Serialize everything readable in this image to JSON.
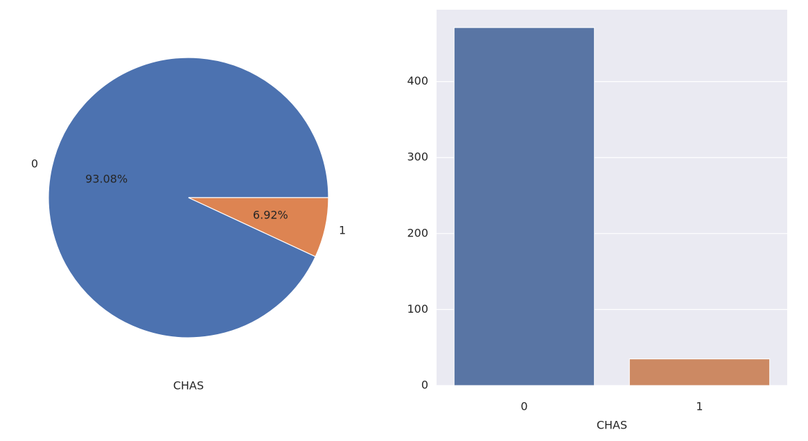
{
  "chart_data": [
    {
      "type": "pie",
      "categories": [
        "0",
        "1"
      ],
      "values": [
        93.08,
        6.92
      ],
      "value_labels": [
        "93.08%",
        "6.92%"
      ],
      "colors": [
        "#4c72b0",
        "#dd8452"
      ],
      "xlabel": "CHAS"
    },
    {
      "type": "bar",
      "categories": [
        "0",
        "1"
      ],
      "values": [
        471,
        35
      ],
      "colors": [
        "#5975a4",
        "#cc8963"
      ],
      "xlabel": "CHAS",
      "ylim": [
        0,
        494.55
      ],
      "yticks": [
        0,
        100,
        200,
        300,
        400
      ],
      "grid": true
    }
  ]
}
